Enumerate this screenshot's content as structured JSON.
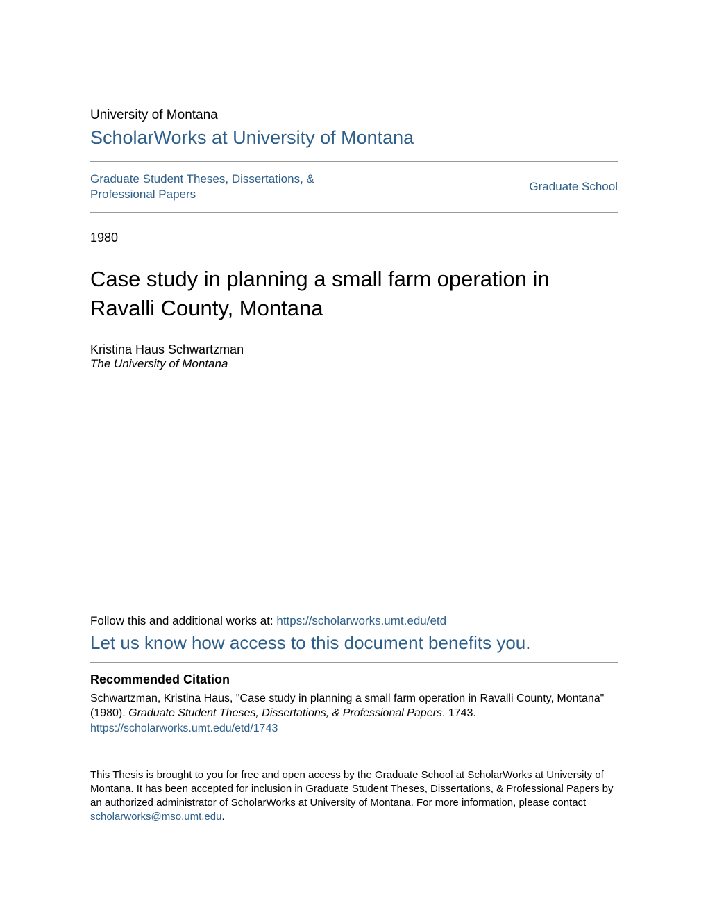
{
  "header": {
    "institution": "University of Montana",
    "repository": "ScholarWorks at University of Montana",
    "collection_link": "Graduate Student Theses, Dissertations, & Professional Papers",
    "school_link": "Graduate School"
  },
  "metadata": {
    "year": "1980",
    "title": "Case study in planning a small farm operation in Ravalli County, Montana",
    "author_name": "Kristina Haus Schwartzman",
    "author_affiliation": "The University of Montana"
  },
  "follow": {
    "prefix": "Follow this and additional works at: ",
    "url_text": "https://scholarworks.umt.edu/etd",
    "survey_text": "Let us know how access to this document benefits you."
  },
  "citation": {
    "heading": "Recommended Citation",
    "line1": "Schwartzman, Kristina Haus, \"Case study in planning a small farm operation in Ravalli County, Montana\" (1980). ",
    "source_italic": "Graduate Student Theses, Dissertations, & Professional Papers",
    "line1_suffix": ". 1743.",
    "url": "https://scholarworks.umt.edu/etd/1743"
  },
  "footer": {
    "text_prefix": "This Thesis is brought to you for free and open access by the Graduate School at ScholarWorks at University of Montana. It has been accepted for inclusion in Graduate Student Theses, Dissertations, & Professional Papers by an authorized administrator of ScholarWorks at University of Montana. For more information, please contact ",
    "email": "scholarworks@mso.umt.edu",
    "text_suffix": "."
  },
  "colors": {
    "link": "#2e5f8a",
    "text": "#000000",
    "divider": "#999999",
    "background": "#ffffff"
  }
}
